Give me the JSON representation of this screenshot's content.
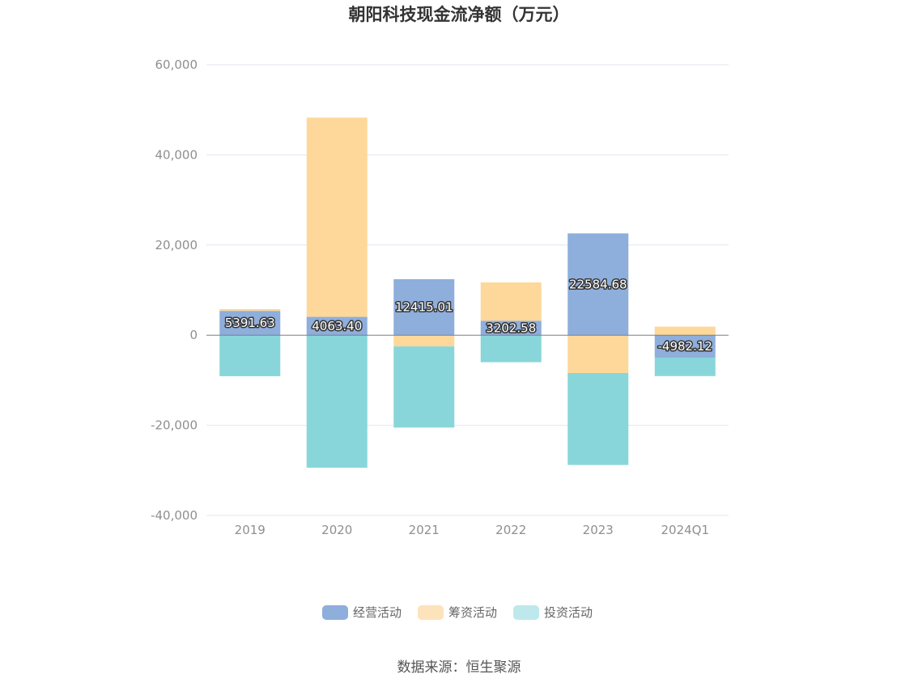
{
  "chart_data": {
    "type": "bar",
    "stacked": true,
    "title": "朝阳科技现金流净额（万元）",
    "categories": [
      "2019",
      "2020",
      "2021",
      "2022",
      "2023",
      "2024Q1"
    ],
    "series": [
      {
        "name": "经营活动",
        "color": "#8eaedc",
        "values": [
          5391.63,
          4063.4,
          12415.01,
          3202.58,
          22584.68,
          -4982.12
        ]
      },
      {
        "name": "筹资活动",
        "color": "#fdd89a",
        "values": [
          400,
          44200,
          -2500,
          8500,
          -8400,
          1900
        ]
      },
      {
        "name": "投资活动",
        "color": "#88d6da",
        "values": [
          -9100,
          -29400,
          -18000,
          -6000,
          -20400,
          -4100
        ]
      }
    ],
    "data_labels": [
      "5391.63",
      "4063.40",
      "12415.01",
      "3202.58",
      "22584.68",
      "-4982.12"
    ],
    "ylim": [
      -40000,
      60000
    ],
    "yticks": [
      -40000,
      -20000,
      0,
      20000,
      40000,
      60000
    ],
    "ytick_labels": [
      "-40,000",
      "-20,000",
      "0",
      "20,000",
      "40,000",
      "60,000"
    ],
    "grid": true,
    "legend_position": "bottom",
    "legend": [
      "经营活动",
      "筹资活动",
      "投资活动"
    ],
    "legend_colors": [
      "#8eaedc",
      "#fde3bb",
      "#bde9ec"
    ],
    "xlabel": "",
    "ylabel": ""
  },
  "source": "数据来源：恒生聚源"
}
